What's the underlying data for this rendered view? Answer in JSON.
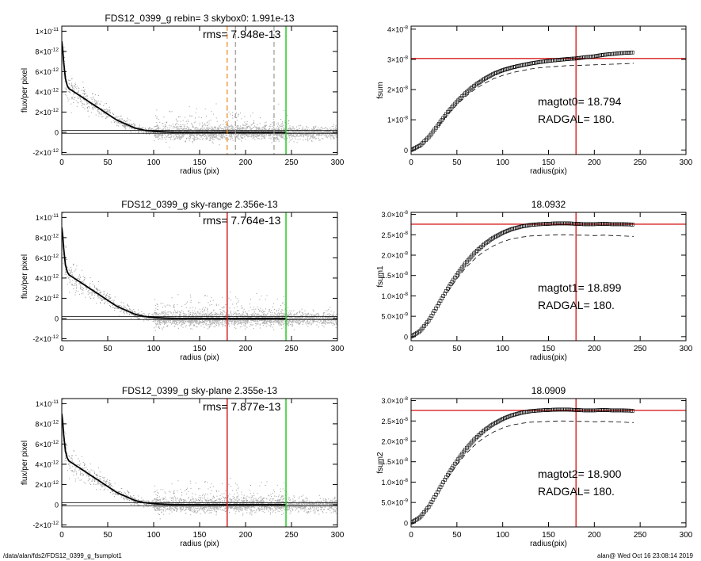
{
  "chart_data": [
    {
      "id": "p1",
      "type": "scatter",
      "title": "FDS12_0399_g rebin= 3    skybox0:  1.991e-13",
      "rms_label": "rms= 7.948e-13",
      "xlabel": "radius (pix)",
      "ylabel": "flux/per pixel",
      "xlim": [
        0,
        300
      ],
      "ylim": [
        -2.2e-12,
        1.05e-11
      ],
      "xticks": [
        "0",
        "50",
        "100",
        "150",
        "200",
        "250",
        "300"
      ],
      "yticks": [
        {
          "value": -2e-12,
          "mant": "-2×10",
          "exp": "-12"
        },
        {
          "value": 0,
          "mant": "0",
          "exp": ""
        },
        {
          "value": 2e-12,
          "mant": "2×10",
          "exp": "-12"
        },
        {
          "value": 4e-12,
          "mant": "4×10",
          "exp": "-12"
        },
        {
          "value": 6e-12,
          "mant": "6×10",
          "exp": "-12"
        },
        {
          "value": 8e-12,
          "mant": "8×10",
          "exp": "-12"
        },
        {
          "value": 1e-11,
          "mant": "1×10",
          "exp": "-11"
        }
      ],
      "vlines": [
        {
          "x": 180,
          "color": "#e8841c",
          "dash": true
        },
        {
          "x": 189,
          "color": "#999999",
          "dash": true
        },
        {
          "x": 231,
          "color": "#999999",
          "dash": true
        },
        {
          "x": 244,
          "color": "#22cc22",
          "dash": false
        }
      ],
      "profile": {
        "x": [
          0,
          1,
          2,
          4,
          6,
          8,
          10,
          15,
          20,
          30,
          40,
          50,
          60,
          70,
          80,
          90,
          100,
          110,
          120,
          140,
          160,
          180,
          200,
          220,
          244
        ],
        "y": [
          9e-12,
          8.2e-12,
          7e-12,
          5.3e-12,
          4.6e-12,
          4.3e-12,
          4.2e-12,
          3.9e-12,
          3.6e-12,
          3e-12,
          2.4e-12,
          1.8e-12,
          1.2e-12,
          8e-13,
          4e-13,
          2e-13,
          1e-13,
          5e-14,
          0,
          0,
          0,
          0,
          0,
          0,
          0
        ]
      },
      "hlines": [
        2e-13,
        -1e-13
      ]
    },
    {
      "id": "p2",
      "type": "line",
      "title": "",
      "xlabel": "radius(pix)",
      "ylabel": "fsum",
      "xlim": [
        0,
        300
      ],
      "ylim": [
        -1.5e-09,
        4.1e-08
      ],
      "xticks": [
        "0",
        "50",
        "100",
        "150",
        "200",
        "250",
        "300"
      ],
      "yticks": [
        {
          "value": 0,
          "mant": "0",
          "exp": ""
        },
        {
          "value": 1e-08,
          "mant": "1×10",
          "exp": "-8"
        },
        {
          "value": 2e-08,
          "mant": "2×10",
          "exp": "-8"
        },
        {
          "value": 3e-08,
          "mant": "3×10",
          "exp": "-8"
        },
        {
          "value": 4e-08,
          "mant": "4×10",
          "exp": "-8"
        }
      ],
      "annotation": [
        "magtot0=  18.794",
        "RADGAL=    180."
      ],
      "cross": {
        "x": 180,
        "y": 3.03e-08
      },
      "series": {
        "x": [
          0,
          10,
          20,
          30,
          40,
          50,
          60,
          70,
          80,
          90,
          100,
          110,
          120,
          130,
          140,
          150,
          160,
          170,
          180,
          190,
          200,
          210,
          220,
          230,
          243
        ],
        "y": [
          0,
          1.5e-09,
          4.5e-09,
          8.5e-09,
          1.25e-08,
          1.6e-08,
          1.9e-08,
          2.15e-08,
          2.35e-08,
          2.52e-08,
          2.64e-08,
          2.73e-08,
          2.8e-08,
          2.86e-08,
          2.91e-08,
          2.95e-08,
          2.98e-08,
          3.01e-08,
          3.03e-08,
          3.07e-08,
          3.1e-08,
          3.15e-08,
          3.18e-08,
          3.21e-08,
          3.23e-08
        ]
      },
      "dashed": {
        "x": [
          30,
          40,
          50,
          60,
          70,
          80,
          90,
          100,
          110,
          120,
          130,
          140,
          150,
          160,
          170,
          180,
          190,
          200,
          210,
          220,
          230,
          243
        ],
        "y": [
          8e-09,
          1.18e-08,
          1.5e-08,
          1.78e-08,
          2.02e-08,
          2.2e-08,
          2.36e-08,
          2.47e-08,
          2.56e-08,
          2.62e-08,
          2.68e-08,
          2.72e-08,
          2.75e-08,
          2.77e-08,
          2.79e-08,
          2.8e-08,
          2.81e-08,
          2.82e-08,
          2.83e-08,
          2.84e-08,
          2.85e-08,
          2.87e-08
        ]
      }
    },
    {
      "id": "p3",
      "type": "scatter",
      "title": "FDS12_0399_g sky-range  2.356e-13",
      "rms_label": "rms= 7.764e-13",
      "xlabel": "radius (pix)",
      "ylabel": "flux/per pixel",
      "xlim": [
        0,
        300
      ],
      "ylim": [
        -2.2e-12,
        1.05e-11
      ],
      "xticks": [
        "0",
        "50",
        "100",
        "150",
        "200",
        "250",
        "300"
      ],
      "yticks": [
        {
          "value": -2e-12,
          "mant": "-2×10",
          "exp": "-12"
        },
        {
          "value": 0,
          "mant": "0",
          "exp": ""
        },
        {
          "value": 2e-12,
          "mant": "2×10",
          "exp": "-12"
        },
        {
          "value": 4e-12,
          "mant": "4×10",
          "exp": "-12"
        },
        {
          "value": 6e-12,
          "mant": "6×10",
          "exp": "-12"
        },
        {
          "value": 8e-12,
          "mant": "8×10",
          "exp": "-12"
        },
        {
          "value": 1e-11,
          "mant": "1×10",
          "exp": "-11"
        }
      ],
      "vlines": [
        {
          "x": 180,
          "color": "#d62020",
          "dash": false
        },
        {
          "x": 244,
          "color": "#22cc22",
          "dash": false
        }
      ],
      "profile": {
        "x": [
          0,
          1,
          2,
          4,
          6,
          8,
          10,
          15,
          20,
          30,
          40,
          50,
          60,
          70,
          80,
          90,
          100,
          110,
          120,
          140,
          160,
          180,
          200,
          220,
          244
        ],
        "y": [
          9e-12,
          8.2e-12,
          7e-12,
          5.3e-12,
          4.6e-12,
          4.3e-12,
          4.2e-12,
          3.9e-12,
          3.6e-12,
          3e-12,
          2.4e-12,
          1.8e-12,
          1.2e-12,
          8e-13,
          4e-13,
          2e-13,
          1e-13,
          5e-14,
          0,
          0,
          0,
          0,
          0,
          0,
          0
        ]
      },
      "hlines": [
        2e-13,
        -1e-13
      ]
    },
    {
      "id": "p4",
      "type": "line",
      "title": "18.0932",
      "xlabel": "radius(pix)",
      "ylabel": "fsum1",
      "xlim": [
        0,
        300
      ],
      "ylim": [
        -1e-09,
        3.05e-08
      ],
      "xticks": [
        "0",
        "50",
        "100",
        "150",
        "200",
        "250",
        "300"
      ],
      "yticks": [
        {
          "value": 0,
          "mant": "0",
          "exp": ""
        },
        {
          "value": 5e-09,
          "mant": "5.0×10",
          "exp": "-9"
        },
        {
          "value": 1e-08,
          "mant": "1.0×10",
          "exp": "-8"
        },
        {
          "value": 1.5e-08,
          "mant": "1.5×10",
          "exp": "-8"
        },
        {
          "value": 2e-08,
          "mant": "2.0×10",
          "exp": "-8"
        },
        {
          "value": 2.5e-08,
          "mant": "2.5×10",
          "exp": "-8"
        },
        {
          "value": 3e-08,
          "mant": "3.0×10",
          "exp": "-8"
        }
      ],
      "annotation": [
        "magtot1=  18.899",
        "RADGAL=    180."
      ],
      "cross": {
        "x": 180,
        "y": 2.76e-08
      },
      "series": {
        "x": [
          0,
          10,
          20,
          30,
          40,
          50,
          60,
          70,
          80,
          90,
          100,
          110,
          120,
          130,
          140,
          150,
          160,
          170,
          180,
          190,
          200,
          210,
          220,
          230,
          243
        ],
        "y": [
          0,
          1.4e-09,
          4.2e-09,
          8e-09,
          1.18e-08,
          1.52e-08,
          1.82e-08,
          2.07e-08,
          2.27e-08,
          2.43e-08,
          2.55e-08,
          2.64e-08,
          2.7e-08,
          2.74e-08,
          2.76e-08,
          2.77e-08,
          2.78e-08,
          2.78e-08,
          2.77e-08,
          2.76e-08,
          2.76e-08,
          2.77e-08,
          2.76e-08,
          2.76e-08,
          2.75e-08
        ]
      },
      "dashed": {
        "x": [
          40,
          50,
          60,
          70,
          80,
          90,
          100,
          110,
          120,
          130,
          140,
          150,
          160,
          170,
          180,
          190,
          200,
          210,
          220,
          230,
          243
        ],
        "y": [
          1.1e-08,
          1.42e-08,
          1.7e-08,
          1.92e-08,
          2.1e-08,
          2.23e-08,
          2.33e-08,
          2.4e-08,
          2.44e-08,
          2.47e-08,
          2.48e-08,
          2.49e-08,
          2.5e-08,
          2.5e-08,
          2.49e-08,
          2.49e-08,
          2.48e-08,
          2.49e-08,
          2.48e-08,
          2.47e-08,
          2.46e-08
        ]
      }
    },
    {
      "id": "p5",
      "type": "scatter",
      "title": "FDS12_0399_g sky-plane  2.355e-13",
      "rms_label": "rms= 7.877e-13",
      "xlabel": "radius (pix)",
      "ylabel": "flux/per pixel",
      "xlim": [
        0,
        300
      ],
      "ylim": [
        -2.2e-12,
        1.05e-11
      ],
      "xticks": [
        "0",
        "50",
        "100",
        "150",
        "200",
        "250",
        "300"
      ],
      "yticks": [
        {
          "value": -2e-12,
          "mant": "-2×10",
          "exp": "-12"
        },
        {
          "value": 0,
          "mant": "0",
          "exp": ""
        },
        {
          "value": 2e-12,
          "mant": "2×10",
          "exp": "-12"
        },
        {
          "value": 4e-12,
          "mant": "4×10",
          "exp": "-12"
        },
        {
          "value": 6e-12,
          "mant": "6×10",
          "exp": "-12"
        },
        {
          "value": 8e-12,
          "mant": "8×10",
          "exp": "-12"
        },
        {
          "value": 1e-11,
          "mant": "1×10",
          "exp": "-11"
        }
      ],
      "vlines": [
        {
          "x": 180,
          "color": "#d62020",
          "dash": false
        },
        {
          "x": 244,
          "color": "#22cc22",
          "dash": false
        }
      ],
      "profile": {
        "x": [
          0,
          1,
          2,
          4,
          6,
          8,
          10,
          15,
          20,
          30,
          40,
          50,
          60,
          70,
          80,
          90,
          100,
          110,
          120,
          140,
          160,
          180,
          200,
          220,
          244
        ],
        "y": [
          9e-12,
          8.2e-12,
          7e-12,
          5.3e-12,
          4.6e-12,
          4.3e-12,
          4.2e-12,
          3.9e-12,
          3.6e-12,
          3e-12,
          2.4e-12,
          1.8e-12,
          1.2e-12,
          8e-13,
          4e-13,
          2e-13,
          1e-13,
          5e-14,
          0,
          0,
          0,
          0,
          0,
          0,
          0
        ]
      },
      "hlines": [
        2e-13,
        -1e-13
      ]
    },
    {
      "id": "p6",
      "type": "line",
      "title": "18.0909",
      "xlabel": "radius(pix)",
      "ylabel": "fsum2",
      "xlim": [
        0,
        300
      ],
      "ylim": [
        -1e-09,
        3.05e-08
      ],
      "xticks": [
        "0",
        "50",
        "100",
        "150",
        "200",
        "250",
        "300"
      ],
      "yticks": [
        {
          "value": 0,
          "mant": "0",
          "exp": ""
        },
        {
          "value": 5e-09,
          "mant": "5.0×10",
          "exp": "-9"
        },
        {
          "value": 1e-08,
          "mant": "1.0×10",
          "exp": "-8"
        },
        {
          "value": 1.5e-08,
          "mant": "1.5×10",
          "exp": "-8"
        },
        {
          "value": 2e-08,
          "mant": "2.0×10",
          "exp": "-8"
        },
        {
          "value": 2.5e-08,
          "mant": "2.5×10",
          "exp": "-8"
        },
        {
          "value": 3e-08,
          "mant": "3.0×10",
          "exp": "-8"
        }
      ],
      "annotation": [
        "magtot2=  18.900",
        "RADGAL=    180."
      ],
      "cross": {
        "x": 180,
        "y": 2.76e-08
      },
      "series": {
        "x": [
          0,
          10,
          20,
          30,
          40,
          50,
          60,
          70,
          80,
          90,
          100,
          110,
          120,
          130,
          140,
          150,
          160,
          170,
          180,
          190,
          200,
          210,
          220,
          230,
          243
        ],
        "y": [
          0,
          1.4e-09,
          4.2e-09,
          8e-09,
          1.18e-08,
          1.52e-08,
          1.82e-08,
          2.07e-08,
          2.27e-08,
          2.43e-08,
          2.55e-08,
          2.64e-08,
          2.7e-08,
          2.74e-08,
          2.76e-08,
          2.77e-08,
          2.78e-08,
          2.78e-08,
          2.77e-08,
          2.76e-08,
          2.76e-08,
          2.77e-08,
          2.76e-08,
          2.76e-08,
          2.75e-08
        ]
      },
      "dashed": {
        "x": [
          40,
          50,
          60,
          70,
          80,
          90,
          100,
          110,
          120,
          130,
          140,
          150,
          160,
          170,
          180,
          190,
          200,
          210,
          220,
          230,
          243
        ],
        "y": [
          1.1e-08,
          1.42e-08,
          1.7e-08,
          1.92e-08,
          2.1e-08,
          2.23e-08,
          2.33e-08,
          2.4e-08,
          2.44e-08,
          2.47e-08,
          2.48e-08,
          2.49e-08,
          2.5e-08,
          2.5e-08,
          2.49e-08,
          2.49e-08,
          2.48e-08,
          2.49e-08,
          2.48e-08,
          2.47e-08,
          2.46e-08
        ]
      }
    }
  ],
  "footer": {
    "left": "/data/alan/fds2/FDS12_0399_g_fsumplot1",
    "right": "alan@  Wed Oct 16 23:08:14 2019"
  }
}
